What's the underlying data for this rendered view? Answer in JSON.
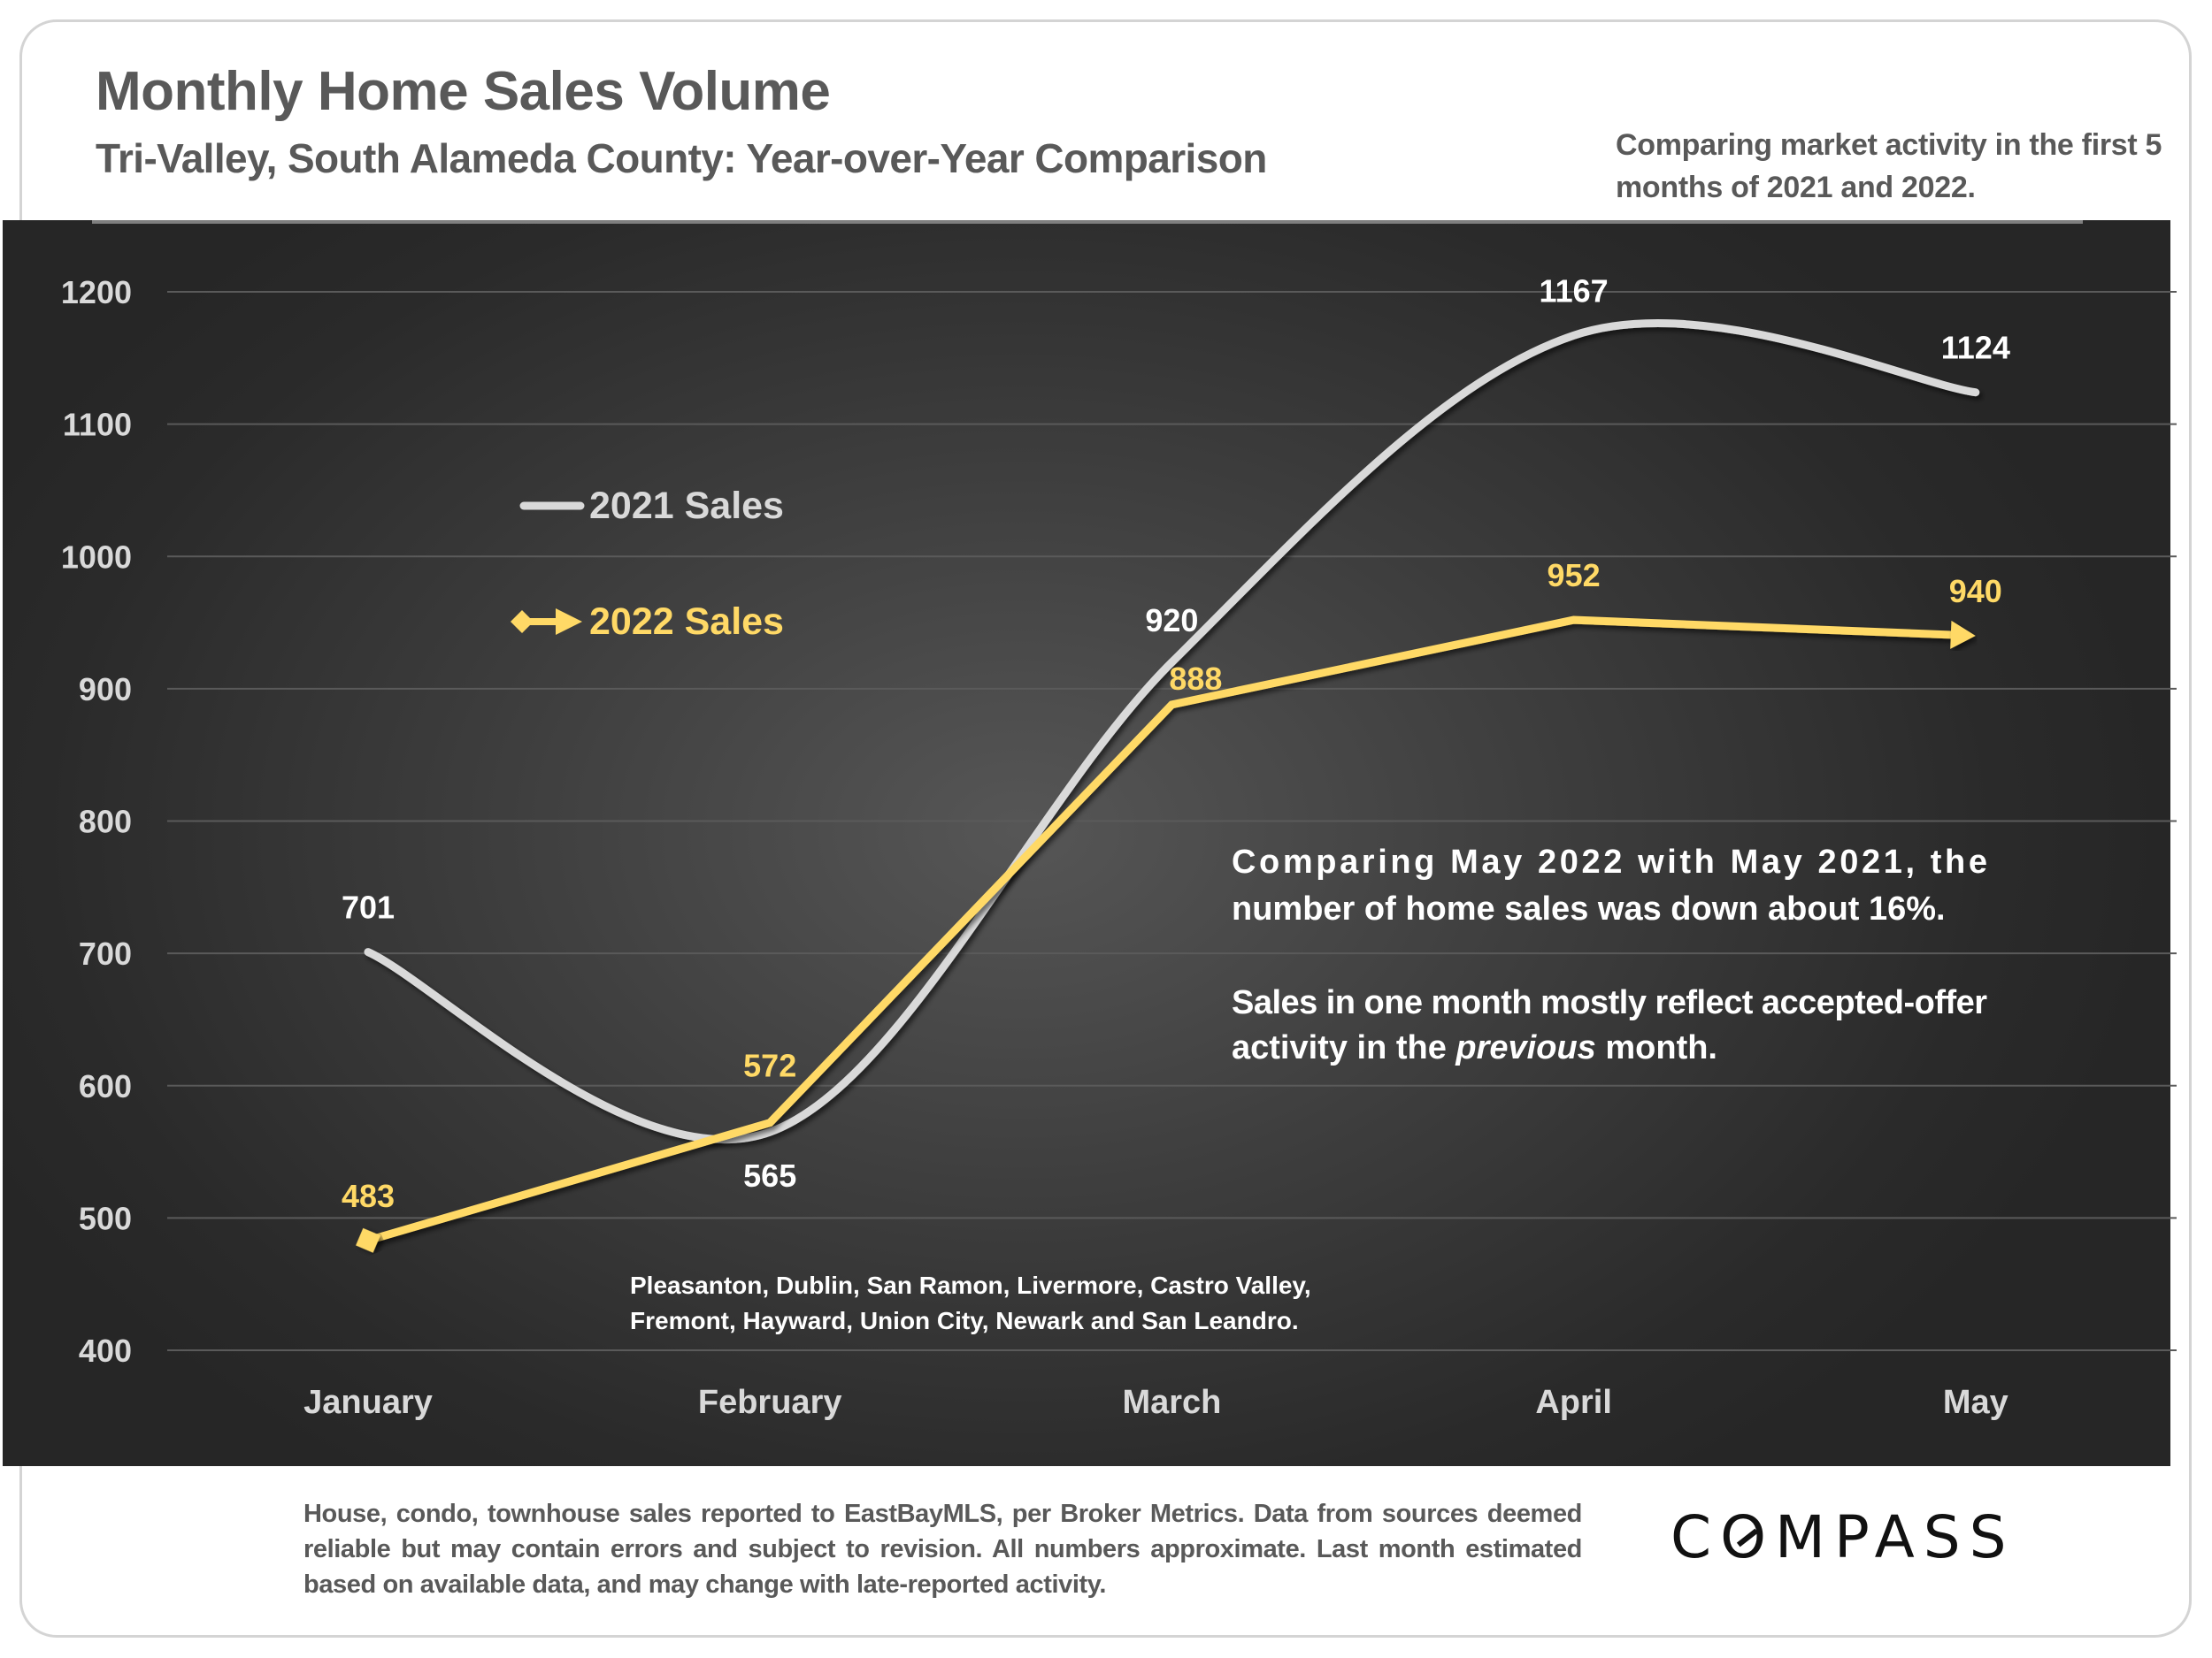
{
  "header": {
    "title": "Monthly Home Sales Volume",
    "subtitle": "Tri-Valley, South Alameda County: Year-over-Year Comparison",
    "note": "Comparing market activity in the first 5 months of 2021 and 2022."
  },
  "annotations": {
    "summary": "Comparing May 2022 with May 2021, the number of home sales was down about 16%.",
    "explanation_before": "Sales in one month mostly reflect accepted-offer activity in the ",
    "explanation_italic": "previous",
    "explanation_after": " month.",
    "cities_line1": "Pleasanton, Dublin, San Ramon, Livermore, Castro Valley,",
    "cities_line2": "Fremont, Hayward, Union City, Newark and San Leandro."
  },
  "footer": {
    "disclaimer": "House, condo, townhouse sales reported to EastBayMLS, per Broker Metrics. Data from sources deemed reliable but may contain errors and subject to revision. All numbers approximate. Last month estimated based on available data, and may change with late-reported activity.",
    "logo_text": "COMPASS"
  },
  "colors": {
    "series_2021": "#d9d9d9",
    "series_2022": "#ffd966",
    "axis_text": "#d9d9d9",
    "grid": "#5a5a5a",
    "header_text": "#595959"
  },
  "chart_data": {
    "type": "line",
    "title": "Monthly Home Sales Volume",
    "subtitle": "Tri-Valley, South Alameda County: Year-over-Year Comparison",
    "xlabel": "",
    "ylabel": "",
    "categories": [
      "January",
      "February",
      "March",
      "April",
      "May"
    ],
    "ylim": [
      400,
      1200
    ],
    "yticks": [
      400,
      500,
      600,
      700,
      800,
      900,
      1000,
      1100,
      1200
    ],
    "grid": true,
    "legend_position": "upper-left",
    "series": [
      {
        "name": "2021 Sales",
        "values": [
          701,
          565,
          920,
          1167,
          1124
        ],
        "smooth": true,
        "marker_start": "none",
        "marker_end": "none"
      },
      {
        "name": "2022 Sales",
        "values": [
          483,
          572,
          888,
          952,
          940
        ],
        "smooth": false,
        "marker_start": "diamond",
        "marker_end": "arrow"
      }
    ]
  }
}
